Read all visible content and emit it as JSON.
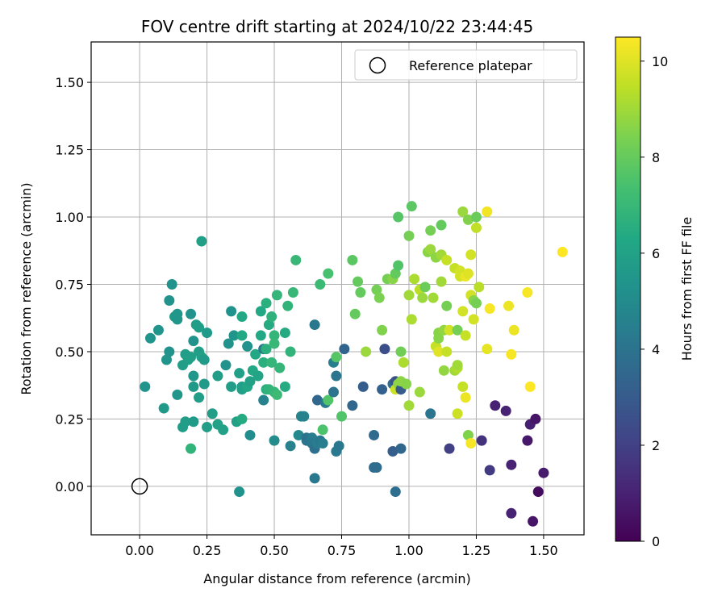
{
  "chart_data": {
    "type": "scatter",
    "title": "FOV centre drift starting at 2024/10/22 23:44:45",
    "xlabel": "Angular distance from reference (arcmin)",
    "ylabel": "Rotation from reference (arcmin)",
    "xlim": [
      -0.18,
      1.65
    ],
    "ylim": [
      -0.18,
      1.65
    ],
    "x_ticks": [
      0.0,
      0.25,
      0.5,
      0.75,
      1.0,
      1.25,
      1.5
    ],
    "x_tick_labels": [
      "0.00",
      "0.25",
      "0.50",
      "0.75",
      "1.00",
      "1.25",
      "1.50"
    ],
    "y_ticks": [
      0.0,
      0.25,
      0.5,
      0.75,
      1.0,
      1.25,
      1.5
    ],
    "y_tick_labels": [
      "0.00",
      "0.25",
      "0.50",
      "0.75",
      "1.00",
      "1.25",
      "1.50"
    ],
    "grid": true,
    "legend": {
      "placement": "top-right",
      "entries": [
        {
          "label": "Reference platepar",
          "marker": "hollow-circle"
        }
      ]
    },
    "reference_point": {
      "x": 0.0,
      "y": 0.0
    },
    "colorbar": {
      "label": "Hours from first FF file",
      "colormap": "viridis",
      "range": [
        0,
        10.5
      ],
      "ticks": [
        0,
        2,
        4,
        6,
        8,
        10
      ],
      "tick_labels": [
        "0",
        "2",
        "4",
        "6",
        "8",
        "10"
      ]
    },
    "points": [
      {
        "x": 0.02,
        "y": 0.37,
        "h": 5.4
      },
      {
        "x": 0.04,
        "y": 0.55,
        "h": 5.4
      },
      {
        "x": 0.07,
        "y": 0.58,
        "h": 5.4
      },
      {
        "x": 0.09,
        "y": 0.29,
        "h": 5.6
      },
      {
        "x": 0.1,
        "y": 0.47,
        "h": 5.4
      },
      {
        "x": 0.11,
        "y": 0.5,
        "h": 5.3
      },
      {
        "x": 0.11,
        "y": 0.69,
        "h": 5.3
      },
      {
        "x": 0.12,
        "y": 0.75,
        "h": 5.3
      },
      {
        "x": 0.13,
        "y": 0.63,
        "h": 5.6
      },
      {
        "x": 0.14,
        "y": 0.64,
        "h": 5.5
      },
      {
        "x": 0.14,
        "y": 0.62,
        "h": 5.5
      },
      {
        "x": 0.14,
        "y": 0.34,
        "h": 5.5
      },
      {
        "x": 0.16,
        "y": 0.45,
        "h": 5.8
      },
      {
        "x": 0.16,
        "y": 0.22,
        "h": 5.8
      },
      {
        "x": 0.17,
        "y": 0.24,
        "h": 5.8
      },
      {
        "x": 0.17,
        "y": 0.49,
        "h": 5.8
      },
      {
        "x": 0.18,
        "y": 0.47,
        "h": 5.9
      },
      {
        "x": 0.19,
        "y": 0.64,
        "h": 5.3
      },
      {
        "x": 0.19,
        "y": 0.48,
        "h": 5.9
      },
      {
        "x": 0.19,
        "y": 0.14,
        "h": 6.8
      },
      {
        "x": 0.2,
        "y": 0.54,
        "h": 5.3
      },
      {
        "x": 0.2,
        "y": 0.41,
        "h": 5.5
      },
      {
        "x": 0.2,
        "y": 0.37,
        "h": 5.6
      },
      {
        "x": 0.2,
        "y": 0.24,
        "h": 5.7
      },
      {
        "x": 0.21,
        "y": 0.6,
        "h": 5.8
      },
      {
        "x": 0.22,
        "y": 0.59,
        "h": 5.8
      },
      {
        "x": 0.22,
        "y": 0.5,
        "h": 5.8
      },
      {
        "x": 0.22,
        "y": 0.33,
        "h": 5.8
      },
      {
        "x": 0.23,
        "y": 0.91,
        "h": 5.9
      },
      {
        "x": 0.23,
        "y": 0.48,
        "h": 5.9
      },
      {
        "x": 0.24,
        "y": 0.47,
        "h": 5.7
      },
      {
        "x": 0.24,
        "y": 0.38,
        "h": 5.7
      },
      {
        "x": 0.25,
        "y": 0.57,
        "h": 5.7
      },
      {
        "x": 0.25,
        "y": 0.22,
        "h": 5.8
      },
      {
        "x": 0.27,
        "y": 0.27,
        "h": 5.8
      },
      {
        "x": 0.29,
        "y": 0.41,
        "h": 5.8
      },
      {
        "x": 0.29,
        "y": 0.23,
        "h": 6.0
      },
      {
        "x": 0.31,
        "y": 0.21,
        "h": 6.0
      },
      {
        "x": 0.32,
        "y": 0.45,
        "h": 5.3
      },
      {
        "x": 0.33,
        "y": 0.53,
        "h": 5.3
      },
      {
        "x": 0.34,
        "y": 0.65,
        "h": 5.3
      },
      {
        "x": 0.34,
        "y": 0.37,
        "h": 5.8
      },
      {
        "x": 0.35,
        "y": 0.56,
        "h": 5.4
      },
      {
        "x": 0.36,
        "y": 0.24,
        "h": 6.0
      },
      {
        "x": 0.37,
        "y": 0.42,
        "h": 5.9
      },
      {
        "x": 0.37,
        "y": -0.02,
        "h": 5.3
      },
      {
        "x": 0.38,
        "y": 0.25,
        "h": 6.4
      },
      {
        "x": 0.38,
        "y": 0.37,
        "h": 5.8
      },
      {
        "x": 0.38,
        "y": 0.36,
        "h": 5.9
      },
      {
        "x": 0.38,
        "y": 0.56,
        "h": 6.3
      },
      {
        "x": 0.38,
        "y": 0.63,
        "h": 6.3
      },
      {
        "x": 0.4,
        "y": 0.37,
        "h": 6.2
      },
      {
        "x": 0.4,
        "y": 0.52,
        "h": 5.3
      },
      {
        "x": 0.41,
        "y": 0.39,
        "h": 6.0
      },
      {
        "x": 0.41,
        "y": 0.19,
        "h": 5.1
      },
      {
        "x": 0.42,
        "y": 0.43,
        "h": 6.3
      },
      {
        "x": 0.43,
        "y": 0.49,
        "h": 6.3
      },
      {
        "x": 0.44,
        "y": 0.41,
        "h": 6.1
      },
      {
        "x": 0.45,
        "y": 0.56,
        "h": 6.3
      },
      {
        "x": 0.45,
        "y": 0.65,
        "h": 6.3
      },
      {
        "x": 0.46,
        "y": 0.32,
        "h": 4.6
      },
      {
        "x": 0.46,
        "y": 0.51,
        "h": 4.2
      },
      {
        "x": 0.46,
        "y": 0.46,
        "h": 6.6
      },
      {
        "x": 0.47,
        "y": 0.68,
        "h": 6.6
      },
      {
        "x": 0.47,
        "y": 0.51,
        "h": 6.6
      },
      {
        "x": 0.47,
        "y": 0.36,
        "h": 6.6
      },
      {
        "x": 0.48,
        "y": 0.6,
        "h": 6.4
      },
      {
        "x": 0.48,
        "y": 0.36,
        "h": 6.8
      },
      {
        "x": 0.49,
        "y": 0.63,
        "h": 6.7
      },
      {
        "x": 0.49,
        "y": 0.46,
        "h": 6.9
      },
      {
        "x": 0.5,
        "y": 0.35,
        "h": 6.9
      },
      {
        "x": 0.5,
        "y": 0.56,
        "h": 6.9
      },
      {
        "x": 0.5,
        "y": 0.53,
        "h": 7.0
      },
      {
        "x": 0.5,
        "y": 0.17,
        "h": 5.1
      },
      {
        "x": 0.51,
        "y": 0.71,
        "h": 6.9
      },
      {
        "x": 0.51,
        "y": 0.34,
        "h": 7.1
      },
      {
        "x": 0.52,
        "y": 0.44,
        "h": 6.9
      },
      {
        "x": 0.54,
        "y": 0.37,
        "h": 6.4
      },
      {
        "x": 0.54,
        "y": 0.57,
        "h": 6.4
      },
      {
        "x": 0.55,
        "y": 0.67,
        "h": 6.8
      },
      {
        "x": 0.56,
        "y": 0.5,
        "h": 6.8
      },
      {
        "x": 0.56,
        "y": 0.15,
        "h": 4.6
      },
      {
        "x": 0.57,
        "y": 0.72,
        "h": 7.0
      },
      {
        "x": 0.58,
        "y": 0.84,
        "h": 7.0
      },
      {
        "x": 0.59,
        "y": 0.19,
        "h": 4.9
      },
      {
        "x": 0.6,
        "y": 0.26,
        "h": 4.7
      },
      {
        "x": 0.61,
        "y": 0.26,
        "h": 4.6
      },
      {
        "x": 0.62,
        "y": 0.18,
        "h": 4.0
      },
      {
        "x": 0.62,
        "y": 0.17,
        "h": 4.0
      },
      {
        "x": 0.64,
        "y": 0.18,
        "h": 4.4
      },
      {
        "x": 0.64,
        "y": 0.16,
        "h": 4.2
      },
      {
        "x": 0.65,
        "y": 0.14,
        "h": 3.9
      },
      {
        "x": 0.65,
        "y": 0.6,
        "h": 4.2
      },
      {
        "x": 0.65,
        "y": 0.03,
        "h": 4.2
      },
      {
        "x": 0.66,
        "y": 0.32,
        "h": 3.5
      },
      {
        "x": 0.66,
        "y": 0.16,
        "h": 4.4
      },
      {
        "x": 0.67,
        "y": 0.75,
        "h": 7.1
      },
      {
        "x": 0.67,
        "y": 0.17,
        "h": 4.2
      },
      {
        "x": 0.68,
        "y": 0.16,
        "h": 4.4
      },
      {
        "x": 0.68,
        "y": 0.21,
        "h": 7.5
      },
      {
        "x": 0.69,
        "y": 0.31,
        "h": 4.3
      },
      {
        "x": 0.7,
        "y": 0.79,
        "h": 7.4
      },
      {
        "x": 0.7,
        "y": 0.32,
        "h": 7.6
      },
      {
        "x": 0.72,
        "y": 0.35,
        "h": 4.0
      },
      {
        "x": 0.72,
        "y": 0.46,
        "h": 4.5
      },
      {
        "x": 0.73,
        "y": 0.48,
        "h": 7.7
      },
      {
        "x": 0.73,
        "y": 0.13,
        "h": 4.3
      },
      {
        "x": 0.73,
        "y": 0.41,
        "h": 4.1
      },
      {
        "x": 0.74,
        "y": 0.15,
        "h": 4.2
      },
      {
        "x": 0.75,
        "y": 0.26,
        "h": 7.6
      },
      {
        "x": 0.76,
        "y": 0.51,
        "h": 3.4
      },
      {
        "x": 0.79,
        "y": 0.3,
        "h": 3.5
      },
      {
        "x": 0.79,
        "y": 0.84,
        "h": 7.8
      },
      {
        "x": 0.8,
        "y": 0.64,
        "h": 8.0
      },
      {
        "x": 0.81,
        "y": 0.76,
        "h": 8.0
      },
      {
        "x": 0.82,
        "y": 0.72,
        "h": 8.0
      },
      {
        "x": 0.83,
        "y": 0.37,
        "h": 3.1
      },
      {
        "x": 0.84,
        "y": 0.5,
        "h": 8.9
      },
      {
        "x": 0.87,
        "y": 0.19,
        "h": 3.6
      },
      {
        "x": 0.87,
        "y": 0.07,
        "h": 3.7
      },
      {
        "x": 0.88,
        "y": 0.07,
        "h": 3.7
      },
      {
        "x": 0.88,
        "y": 0.73,
        "h": 8.3
      },
      {
        "x": 0.89,
        "y": 0.7,
        "h": 8.4
      },
      {
        "x": 0.9,
        "y": 0.36,
        "h": 3.2
      },
      {
        "x": 0.9,
        "y": 0.58,
        "h": 8.5
      },
      {
        "x": 0.91,
        "y": 0.51,
        "h": 2.5
      },
      {
        "x": 0.92,
        "y": 0.77,
        "h": 8.3
      },
      {
        "x": 0.94,
        "y": 0.13,
        "h": 3.1
      },
      {
        "x": 0.94,
        "y": 0.38,
        "h": 3.8
      },
      {
        "x": 0.94,
        "y": 0.77,
        "h": 8.6
      },
      {
        "x": 0.95,
        "y": -0.02,
        "h": 3.8
      },
      {
        "x": 0.95,
        "y": 0.39,
        "h": 2.6
      },
      {
        "x": 0.95,
        "y": 0.36,
        "h": 9.7
      },
      {
        "x": 0.95,
        "y": 0.79,
        "h": 8.0
      },
      {
        "x": 0.96,
        "y": 0.82,
        "h": 7.6
      },
      {
        "x": 0.96,
        "y": 1.0,
        "h": 7.7
      },
      {
        "x": 0.96,
        "y": 0.38,
        "h": 8.7
      },
      {
        "x": 0.97,
        "y": 0.36,
        "h": 3.0
      },
      {
        "x": 0.97,
        "y": 0.14,
        "h": 3.5
      },
      {
        "x": 0.97,
        "y": 0.5,
        "h": 8.2
      },
      {
        "x": 0.97,
        "y": 0.39,
        "h": 8.7
      },
      {
        "x": 0.98,
        "y": 0.46,
        "h": 9.2
      },
      {
        "x": 0.99,
        "y": 0.38,
        "h": 8.6
      },
      {
        "x": 1.0,
        "y": 0.3,
        "h": 9.0
      },
      {
        "x": 1.0,
        "y": 0.93,
        "h": 8.3
      },
      {
        "x": 1.0,
        "y": 0.71,
        "h": 9.0
      },
      {
        "x": 1.01,
        "y": 1.04,
        "h": 7.8
      },
      {
        "x": 1.01,
        "y": 0.62,
        "h": 9.2
      },
      {
        "x": 1.02,
        "y": 0.77,
        "h": 9.2
      },
      {
        "x": 1.04,
        "y": 0.73,
        "h": 9.4
      },
      {
        "x": 1.04,
        "y": 0.35,
        "h": 8.9
      },
      {
        "x": 1.05,
        "y": 0.7,
        "h": 8.9
      },
      {
        "x": 1.06,
        "y": 0.74,
        "h": 8.1
      },
      {
        "x": 1.07,
        "y": 0.87,
        "h": 8.6
      },
      {
        "x": 1.08,
        "y": 0.88,
        "h": 8.9
      },
      {
        "x": 1.08,
        "y": 0.27,
        "h": 4.1
      },
      {
        "x": 1.08,
        "y": 0.95,
        "h": 8.3
      },
      {
        "x": 1.09,
        "y": 0.7,
        "h": 9.0
      },
      {
        "x": 1.1,
        "y": 0.52,
        "h": 9.5
      },
      {
        "x": 1.1,
        "y": 0.52,
        "h": 9.6
      },
      {
        "x": 1.1,
        "y": 0.85,
        "h": 8.7
      },
      {
        "x": 1.11,
        "y": 0.57,
        "h": 8.6
      },
      {
        "x": 1.11,
        "y": 0.55,
        "h": 8.6
      },
      {
        "x": 1.11,
        "y": 0.5,
        "h": 10.0
      },
      {
        "x": 1.12,
        "y": 0.86,
        "h": 9.0
      },
      {
        "x": 1.12,
        "y": 0.76,
        "h": 9.0
      },
      {
        "x": 1.12,
        "y": 0.97,
        "h": 8.0
      },
      {
        "x": 1.13,
        "y": 0.58,
        "h": 8.8
      },
      {
        "x": 1.13,
        "y": 0.43,
        "h": 8.8
      },
      {
        "x": 1.14,
        "y": 0.84,
        "h": 9.6
      },
      {
        "x": 1.14,
        "y": 0.5,
        "h": 9.6
      },
      {
        "x": 1.14,
        "y": 0.67,
        "h": 8.3
      },
      {
        "x": 1.15,
        "y": 0.58,
        "h": 9.8
      },
      {
        "x": 1.15,
        "y": 0.14,
        "h": 2.0
      },
      {
        "x": 1.17,
        "y": 0.43,
        "h": 9.0
      },
      {
        "x": 1.17,
        "y": 0.81,
        "h": 9.6
      },
      {
        "x": 1.18,
        "y": 0.44,
        "h": 9.3
      },
      {
        "x": 1.18,
        "y": 0.58,
        "h": 8.3
      },
      {
        "x": 1.18,
        "y": 0.45,
        "h": 9.0
      },
      {
        "x": 1.18,
        "y": 0.27,
        "h": 9.7
      },
      {
        "x": 1.19,
        "y": 0.78,
        "h": 9.8
      },
      {
        "x": 1.19,
        "y": 0.8,
        "h": 9.8
      },
      {
        "x": 1.2,
        "y": 1.02,
        "h": 8.9
      },
      {
        "x": 1.2,
        "y": 0.65,
        "h": 9.8
      },
      {
        "x": 1.2,
        "y": 0.37,
        "h": 9.6
      },
      {
        "x": 1.21,
        "y": 0.33,
        "h": 10.2
      },
      {
        "x": 1.21,
        "y": 0.56,
        "h": 9.6
      },
      {
        "x": 1.21,
        "y": 0.78,
        "h": 10.2
      },
      {
        "x": 1.22,
        "y": 0.19,
        "h": 8.5
      },
      {
        "x": 1.22,
        "y": 0.99,
        "h": 8.5
      },
      {
        "x": 1.22,
        "y": 0.79,
        "h": 10.0
      },
      {
        "x": 1.23,
        "y": 0.16,
        "h": 10.4
      },
      {
        "x": 1.23,
        "y": 0.71,
        "h": 9.8
      },
      {
        "x": 1.23,
        "y": 0.86,
        "h": 9.8
      },
      {
        "x": 1.24,
        "y": 0.69,
        "h": 8.6
      },
      {
        "x": 1.24,
        "y": 0.62,
        "h": 9.8
      },
      {
        "x": 1.25,
        "y": 1.0,
        "h": 8.1
      },
      {
        "x": 1.25,
        "y": 0.68,
        "h": 8.3
      },
      {
        "x": 1.25,
        "y": 0.96,
        "h": 9.5
      },
      {
        "x": 1.26,
        "y": 0.74,
        "h": 9.4
      },
      {
        "x": 1.27,
        "y": 0.17,
        "h": 1.5
      },
      {
        "x": 1.29,
        "y": 0.51,
        "h": 10.1
      },
      {
        "x": 1.29,
        "y": 1.02,
        "h": 10.3
      },
      {
        "x": 1.3,
        "y": 0.66,
        "h": 10.4
      },
      {
        "x": 1.3,
        "y": 0.06,
        "h": 1.8
      },
      {
        "x": 1.32,
        "y": 0.3,
        "h": 1.0
      },
      {
        "x": 1.36,
        "y": 0.28,
        "h": 1.0
      },
      {
        "x": 1.37,
        "y": 0.67,
        "h": 10.2
      },
      {
        "x": 1.38,
        "y": 0.49,
        "h": 10.4
      },
      {
        "x": 1.38,
        "y": 0.08,
        "h": 1.0
      },
      {
        "x": 1.38,
        "y": -0.1,
        "h": 1.0
      },
      {
        "x": 1.39,
        "y": 0.58,
        "h": 10.2
      },
      {
        "x": 1.44,
        "y": 0.17,
        "h": 0.7
      },
      {
        "x": 1.44,
        "y": 0.72,
        "h": 10.4
      },
      {
        "x": 1.45,
        "y": 0.37,
        "h": 10.5
      },
      {
        "x": 1.45,
        "y": 0.23,
        "h": 0.9
      },
      {
        "x": 1.46,
        "y": -0.13,
        "h": 0.6
      },
      {
        "x": 1.47,
        "y": 0.25,
        "h": 0.6
      },
      {
        "x": 1.48,
        "y": -0.02,
        "h": 0.3
      },
      {
        "x": 1.5,
        "y": 0.05,
        "h": 0.8
      },
      {
        "x": 1.57,
        "y": 0.87,
        "h": 10.5
      }
    ]
  }
}
